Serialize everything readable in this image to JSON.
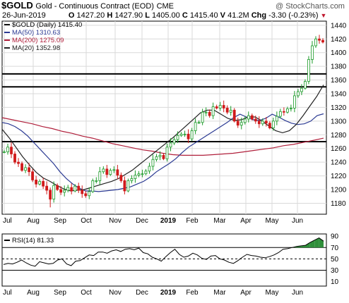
{
  "header": {
    "symbol": "$GOLD",
    "name": "Gold - Continuous Contract (EOD)",
    "exchange": "CME",
    "watermark": "@ StockCharts.com",
    "date": "26-Jun-2019",
    "open_label": "O",
    "open": "1427.20",
    "high_label": "H",
    "high": "1427.90",
    "low_label": "L",
    "low": "1405.00",
    "close_label": "C",
    "close": "1415.40",
    "volume_label": "V",
    "volume": "41.2M",
    "change_label": "Chg",
    "change": "-3.30 (-0.23%)"
  },
  "colors": {
    "price": "#111111",
    "ma50": "#2b3a93",
    "ma200": "#b01f3b",
    "ma20": "#222222",
    "up": "#1a9a27",
    "down": "#d01b1b",
    "grid": "#d9d9d9",
    "rsi_fill": "#2f8f3a"
  },
  "chart_data": [
    {
      "type": "candlestick",
      "title": "$GOLD (Daily) 1415.40",
      "legend": [
        {
          "label": "$GOLD (Daily) 1415.40",
          "color": "#111111"
        },
        {
          "label": "MA(50) 1310.63",
          "color": "#2b3a93"
        },
        {
          "label": "MA(200) 1275.09",
          "color": "#b01f3b"
        },
        {
          "label": "MA(20) 1352.98",
          "color": "#222222"
        }
      ],
      "legend_position": "top-left",
      "ylim": [
        1164,
        1446
      ],
      "y_ticks": [
        1180,
        1200,
        1220,
        1240,
        1260,
        1280,
        1300,
        1320,
        1340,
        1360,
        1380,
        1400,
        1420,
        1440
      ],
      "y_axis_side": "right",
      "x_labels": [
        "Jul",
        "Aug",
        "Sep",
        "Oct",
        "Nov",
        "Dec",
        "2019",
        "Feb",
        "Mar",
        "Apr",
        "May",
        "Jun"
      ],
      "x_label_bold": "2019",
      "grid": true,
      "price": [
        1255,
        1262,
        1252,
        1240,
        1238,
        1228,
        1232,
        1226,
        1214,
        1208,
        1212,
        1205,
        1199,
        1186,
        1206,
        1200,
        1196,
        1199,
        1203,
        1198,
        1205,
        1199,
        1194,
        1191,
        1197,
        1213,
        1213,
        1226,
        1230,
        1222,
        1228,
        1229,
        1221,
        1213,
        1198,
        1213,
        1216,
        1221,
        1223,
        1223,
        1227,
        1234,
        1244,
        1248,
        1250,
        1245,
        1262,
        1268,
        1273,
        1279,
        1281,
        1281,
        1274,
        1286,
        1298,
        1298,
        1313,
        1313,
        1308,
        1321,
        1319,
        1323,
        1319,
        1313,
        1316,
        1300,
        1294,
        1298,
        1303,
        1308,
        1303,
        1300,
        1296,
        1300,
        1297,
        1290,
        1300,
        1307,
        1314,
        1313,
        1318,
        1319,
        1337,
        1343,
        1348,
        1358,
        1390,
        1410,
        1420,
        1418,
        1415.4
      ],
      "price_low": 1174,
      "ma50": [
        1298,
        1296,
        1292,
        1286,
        1278,
        1268,
        1258,
        1248,
        1238,
        1226,
        1216,
        1208,
        1202,
        1198,
        1198,
        1197,
        1198,
        1199,
        1200,
        1202,
        1204,
        1208,
        1212,
        1218,
        1226,
        1232,
        1238,
        1245,
        1254,
        1262,
        1268,
        1274,
        1280,
        1286,
        1292,
        1298,
        1305,
        1310,
        1306,
        1302,
        1301,
        1304,
        1310,
        1306,
        1301,
        1297,
        1295,
        1296,
        1300,
        1308,
        1310.63
      ],
      "ma200": [
        1305,
        1302,
        1299,
        1296,
        1292,
        1289,
        1285,
        1282,
        1278,
        1275,
        1271,
        1267,
        1264,
        1261,
        1258,
        1256,
        1253,
        1251,
        1250,
        1250,
        1250,
        1251,
        1252,
        1253,
        1255,
        1257,
        1259,
        1261,
        1264,
        1266,
        1269,
        1272,
        1275.09
      ],
      "ma20": [
        1288,
        1276,
        1262,
        1248,
        1236,
        1225,
        1217,
        1212,
        1206,
        1201,
        1198,
        1199,
        1200,
        1203,
        1206,
        1209,
        1212,
        1216,
        1222,
        1228,
        1236,
        1244,
        1252,
        1260,
        1268,
        1276,
        1285,
        1294,
        1303,
        1312,
        1316,
        1316,
        1310,
        1304,
        1301,
        1302,
        1306,
        1306,
        1300,
        1293,
        1286,
        1283,
        1286,
        1295,
        1308,
        1322,
        1336,
        1352.98
      ],
      "horizontal_lines": [
        1369,
        1350,
        1270
      ]
    },
    {
      "type": "line",
      "title": "RSI(14) 81.33",
      "ylim": [
        2,
        94
      ],
      "y_ticks": [
        10,
        30,
        50,
        70,
        90
      ],
      "reference_lines": [
        30,
        50,
        70
      ],
      "x_labels": [
        "Jul",
        "Aug",
        "Sep",
        "Oct",
        "Nov",
        "Dec",
        "2019",
        "Feb",
        "Mar",
        "Apr",
        "May",
        "Jun"
      ],
      "x_label_bold": "2019",
      "values": [
        40,
        42,
        41,
        44,
        48,
        43,
        39,
        37,
        45,
        43,
        41,
        42,
        48,
        50,
        41,
        38,
        46,
        47,
        52,
        57,
        56,
        62,
        62,
        60,
        64,
        66,
        63,
        67,
        68,
        66,
        69,
        61,
        59,
        53,
        50,
        46,
        54,
        61,
        67,
        58,
        53,
        55,
        60,
        57,
        51,
        49,
        55,
        56,
        50,
        48,
        44,
        42,
        47,
        53,
        58,
        56,
        55,
        53,
        52,
        54,
        57,
        61,
        67,
        68,
        70,
        72,
        73,
        74,
        79,
        83,
        87,
        81.33
      ],
      "overbought_fill": 70
    }
  ]
}
